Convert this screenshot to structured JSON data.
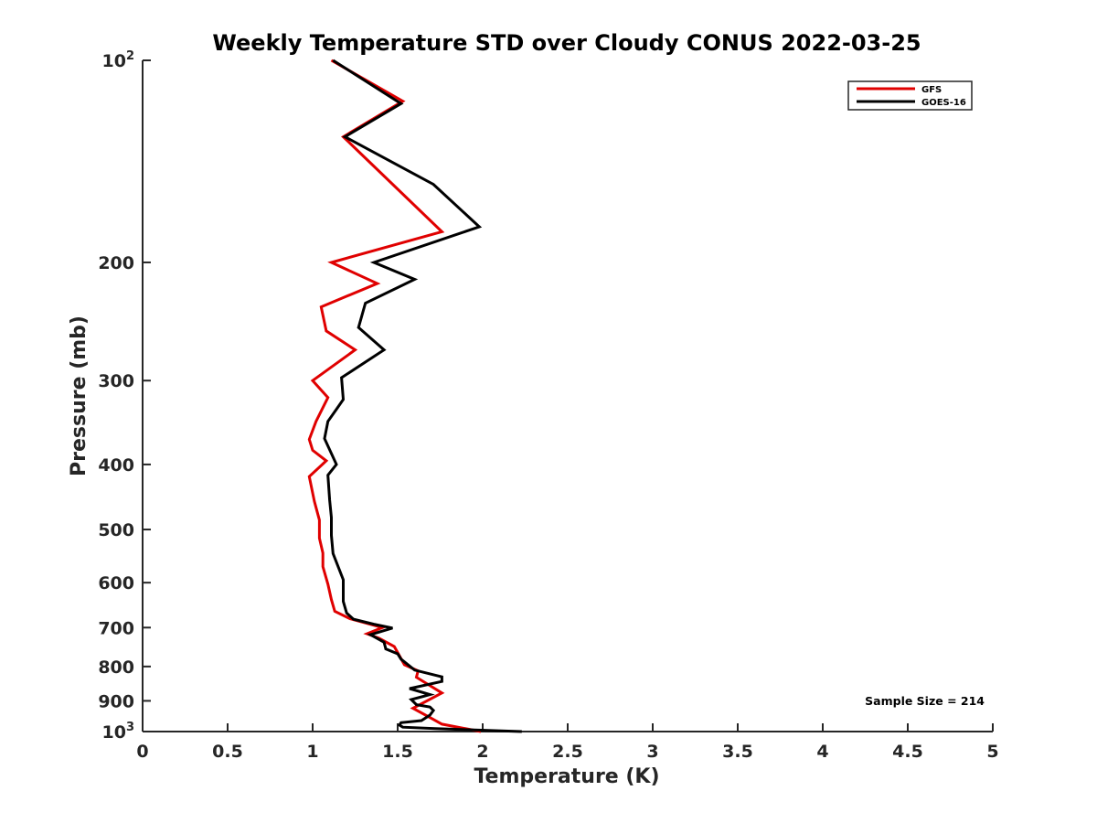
{
  "chart_data": {
    "type": "line",
    "title": "Weekly Temperature STD over Cloudy CONUS 2022-03-25",
    "xlabel": "Temperature (K)",
    "ylabel": "Pressure (mb)",
    "xlim": [
      0,
      5
    ],
    "ylim": [
      100,
      1000
    ],
    "y_scale": "log",
    "y_reversed": true,
    "grid": false,
    "x_ticks": [
      {
        "value": 0,
        "label": "0"
      },
      {
        "value": 0.5,
        "label": "0.5"
      },
      {
        "value": 1,
        "label": "1"
      },
      {
        "value": 1.5,
        "label": "1.5"
      },
      {
        "value": 2,
        "label": "2"
      },
      {
        "value": 2.5,
        "label": "2.5"
      },
      {
        "value": 3,
        "label": "3"
      },
      {
        "value": 3.5,
        "label": "3.5"
      },
      {
        "value": 4,
        "label": "4"
      },
      {
        "value": 4.5,
        "label": "4.5"
      },
      {
        "value": 5,
        "label": "5"
      }
    ],
    "y_ticks": [
      {
        "value": 100,
        "base": "10",
        "exp": "2"
      },
      {
        "value": 200,
        "label": "200"
      },
      {
        "value": 300,
        "label": "300"
      },
      {
        "value": 400,
        "label": "400"
      },
      {
        "value": 500,
        "label": "500"
      },
      {
        "value": 600,
        "label": "600"
      },
      {
        "value": 700,
        "label": "700"
      },
      {
        "value": 800,
        "label": "800"
      },
      {
        "value": 900,
        "label": "900"
      },
      {
        "value": 1000,
        "base": "10",
        "exp": "3"
      }
    ],
    "legend_position": "top-right",
    "annotation": "Sample Size = 214",
    "series": [
      {
        "name": "GFS",
        "color": "#e00000",
        "points": [
          [
            1.11,
            100
          ],
          [
            1.53,
            115
          ],
          [
            1.18,
            130
          ],
          [
            1.76,
            180
          ],
          [
            1.11,
            200
          ],
          [
            1.38,
            215
          ],
          [
            1.05,
            233
          ],
          [
            1.08,
            253
          ],
          [
            1.25,
            270
          ],
          [
            1.0,
            300
          ],
          [
            1.09,
            318
          ],
          [
            1.02,
            345
          ],
          [
            0.98,
            367
          ],
          [
            1.0,
            381
          ],
          [
            1.08,
            395
          ],
          [
            0.98,
            417
          ],
          [
            1.01,
            454
          ],
          [
            1.04,
            484
          ],
          [
            1.04,
            515
          ],
          [
            1.06,
            542
          ],
          [
            1.06,
            568
          ],
          [
            1.09,
            603
          ],
          [
            1.11,
            636
          ],
          [
            1.13,
            662
          ],
          [
            1.22,
            679
          ],
          [
            1.41,
            700
          ],
          [
            1.32,
            715
          ],
          [
            1.39,
            726
          ],
          [
            1.48,
            747
          ],
          [
            1.54,
            795
          ],
          [
            1.62,
            812
          ],
          [
            1.61,
            830
          ],
          [
            1.76,
            876
          ],
          [
            1.59,
            923
          ],
          [
            1.7,
            956
          ],
          [
            1.76,
            975
          ],
          [
            1.99,
            1000
          ]
        ]
      },
      {
        "name": "GOES-16",
        "color": "#000000",
        "points": [
          [
            1.12,
            100
          ],
          [
            1.52,
            116
          ],
          [
            1.19,
            130
          ],
          [
            1.71,
            153
          ],
          [
            1.98,
            177
          ],
          [
            1.36,
            200
          ],
          [
            1.6,
            212
          ],
          [
            1.31,
            230
          ],
          [
            1.27,
            250
          ],
          [
            1.42,
            270
          ],
          [
            1.17,
            297
          ],
          [
            1.18,
            320
          ],
          [
            1.14,
            331
          ],
          [
            1.09,
            345
          ],
          [
            1.07,
            366
          ],
          [
            1.14,
            400
          ],
          [
            1.09,
            415
          ],
          [
            1.1,
            452
          ],
          [
            1.11,
            480
          ],
          [
            1.11,
            510
          ],
          [
            1.12,
            543
          ],
          [
            1.18,
            594
          ],
          [
            1.18,
            640
          ],
          [
            1.2,
            666
          ],
          [
            1.24,
            680
          ],
          [
            1.36,
            692
          ],
          [
            1.47,
            701
          ],
          [
            1.34,
            717
          ],
          [
            1.42,
            736
          ],
          [
            1.43,
            753
          ],
          [
            1.5,
            766
          ],
          [
            1.52,
            780
          ],
          [
            1.6,
            810
          ],
          [
            1.76,
            829
          ],
          [
            1.76,
            842
          ],
          [
            1.57,
            863
          ],
          [
            1.69,
            881
          ],
          [
            1.58,
            896
          ],
          [
            1.61,
            912
          ],
          [
            1.69,
            919
          ],
          [
            1.71,
            930
          ],
          [
            1.69,
            945
          ],
          [
            1.64,
            963
          ],
          [
            1.52,
            970
          ],
          [
            1.51,
            978
          ],
          [
            1.53,
            985
          ],
          [
            1.72,
            990
          ],
          [
            2.23,
            1000
          ]
        ]
      }
    ]
  }
}
